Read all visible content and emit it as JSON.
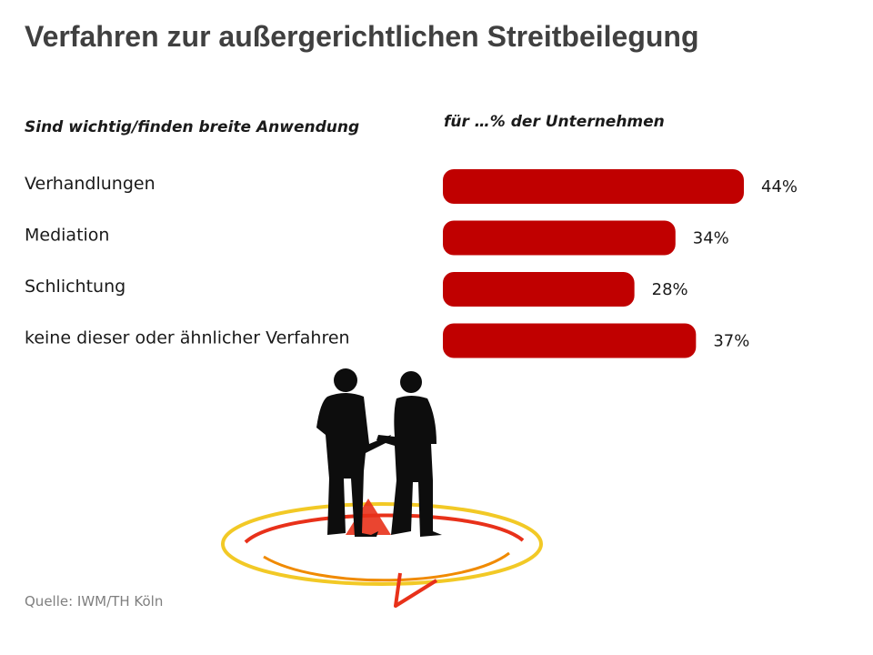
{
  "header": {
    "title": "Verfahren zur außergerichtlichen Streitbeilegung",
    "left_subhead": "Sind wichtig/finden breite Anwendung",
    "right_subhead": "für …% der Unternehmen"
  },
  "chart_data": {
    "type": "bar",
    "orientation": "horizontal",
    "categories": [
      "Verhandlungen",
      "Mediation",
      "Schlichtung",
      "keine dieser oder ähnlicher Verfahren"
    ],
    "values": [
      44,
      34,
      28,
      37
    ],
    "value_labels": [
      "44%",
      "34%",
      "28%",
      "37%"
    ],
    "xlabel": "",
    "ylabel": "",
    "xlim": [
      0,
      44
    ],
    "grid": false,
    "bar_color": "#c00000"
  },
  "footer": {
    "source": "Quelle: IWM/TH Köln"
  },
  "illustration": {
    "icon": "handshake-silhouette-icon",
    "accent_colors": [
      "#e8311a",
      "#f0c000"
    ]
  }
}
